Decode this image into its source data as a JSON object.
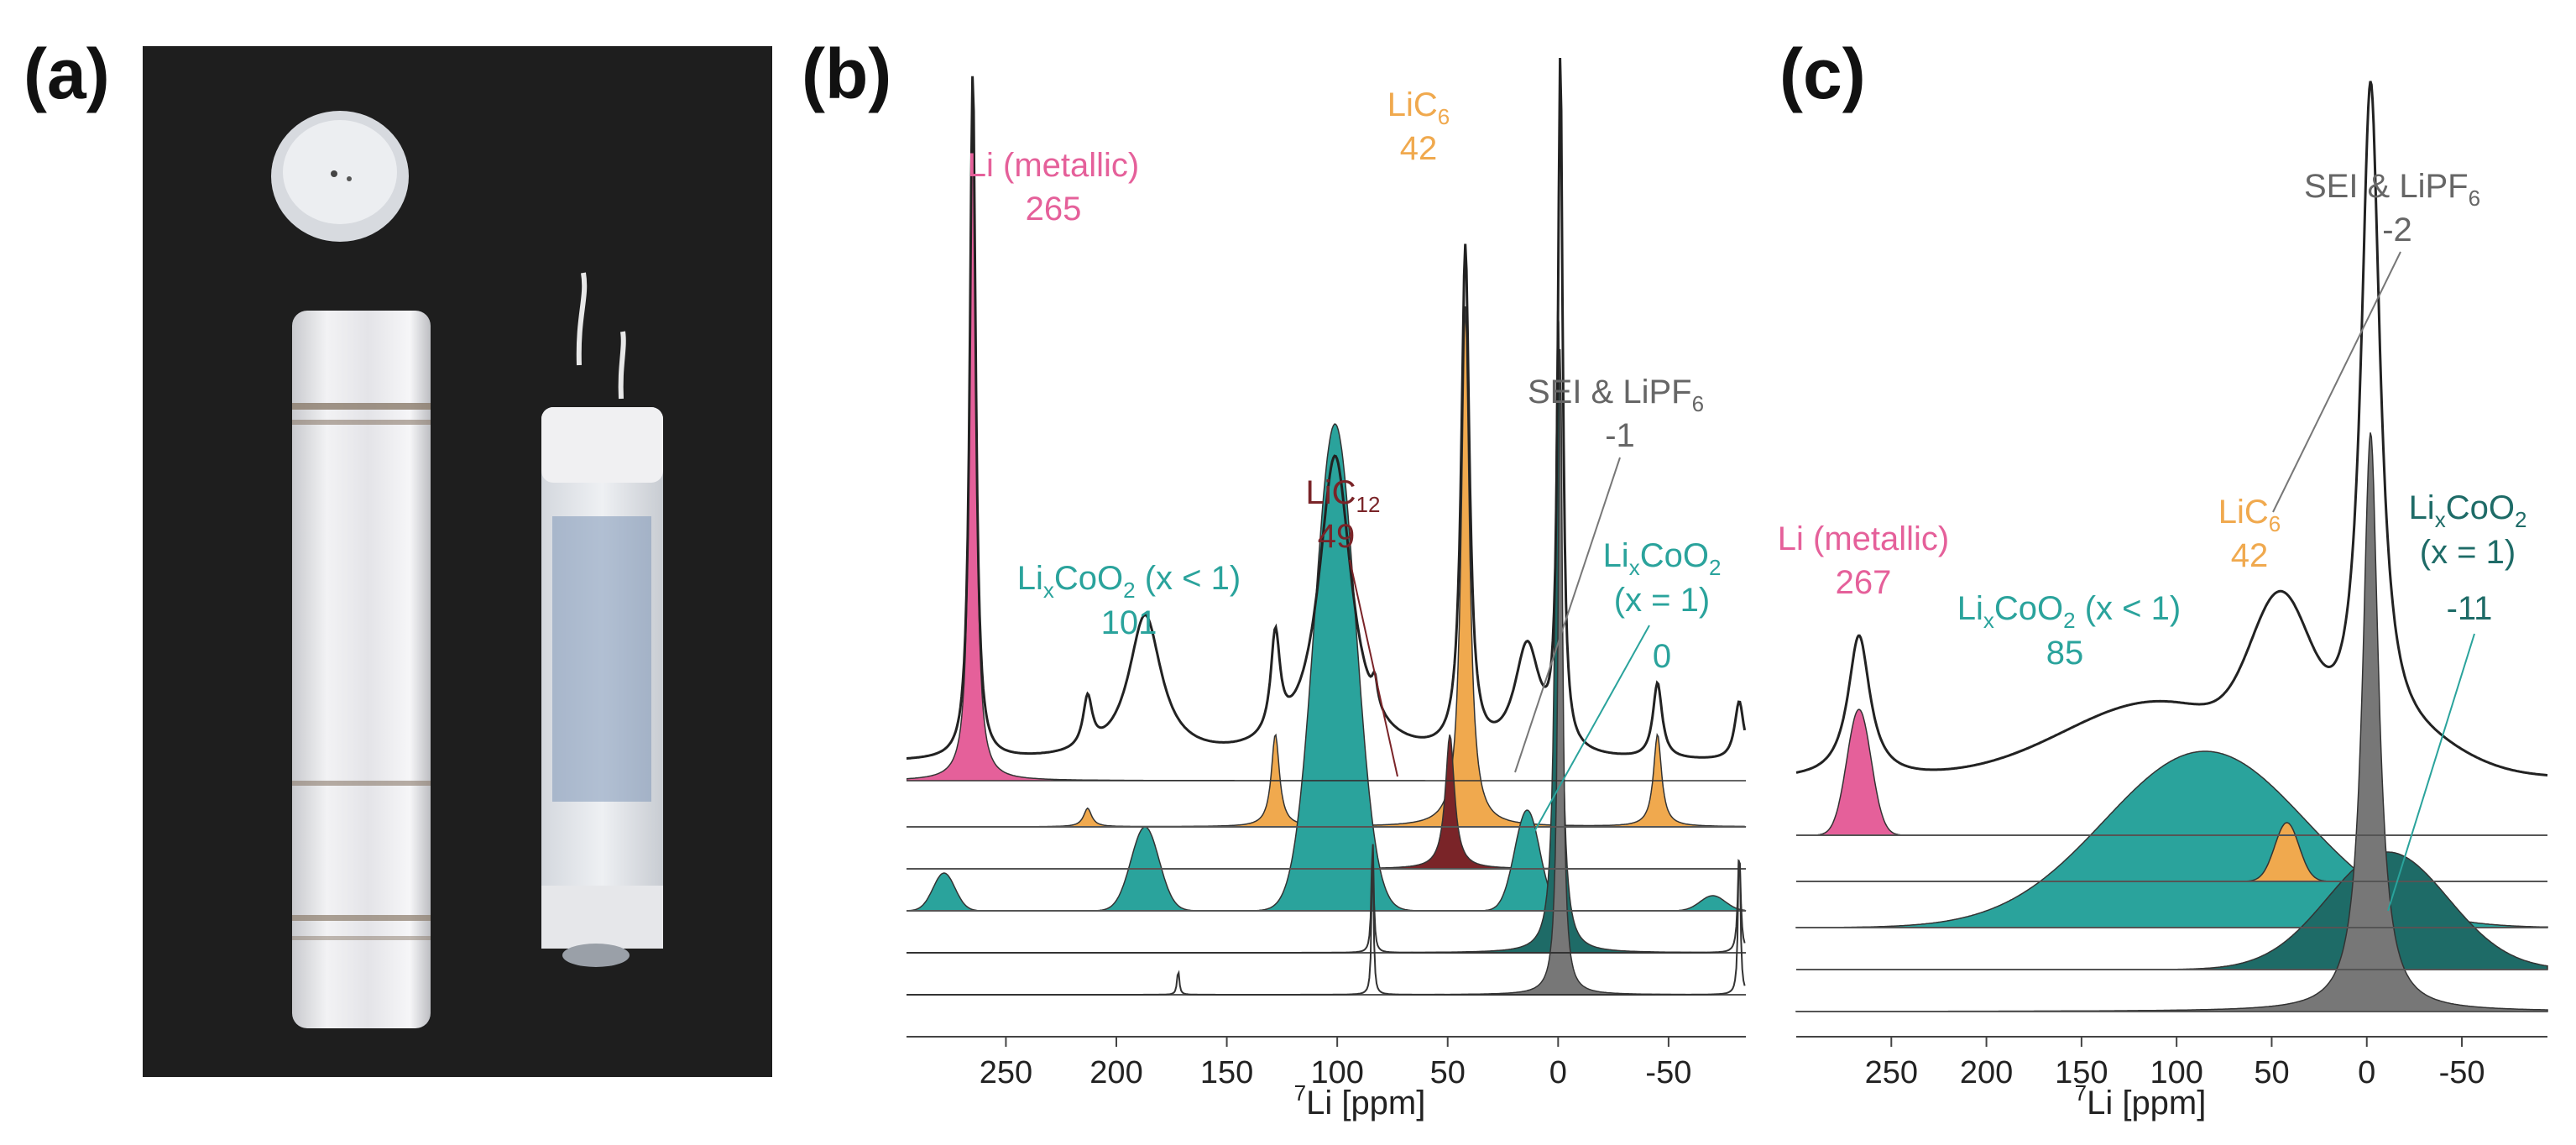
{
  "panels": {
    "a": {
      "letter": "(a)"
    },
    "b": {
      "letter": "(b)",
      "x_axis": {
        "label_sup": "7",
        "label_main": "Li [ppm]",
        "ticks": [
          "250",
          "200",
          "150",
          "100",
          "50",
          "0",
          "-50"
        ]
      },
      "annotations": {
        "li_metal": {
          "name": "Li (metallic)",
          "value": "265"
        },
        "lic6": {
          "name_main": "LiC",
          "name_sub": "6",
          "value": "42"
        },
        "lic12": {
          "name_main": "LiC",
          "name_sub": "12",
          "value": "49"
        },
        "sei": {
          "name_main": "SEI & LiPF",
          "name_sub": "6",
          "value": "-1"
        },
        "licoo2_lt1": {
          "p1": "Li",
          "p1_sub": "x",
          "p2": "CoO",
          "p2_sub": "2",
          "cond": " (x < 1)",
          "value": "101"
        },
        "licoo2_eq1": {
          "p1": "Li",
          "p1_sub": "x",
          "p2": "CoO",
          "p2_sub": "2",
          "cond": "(x = 1)",
          "value": "0"
        }
      }
    },
    "c": {
      "letter": "(c)",
      "x_axis": {
        "label_sup": "7",
        "label_main": "Li [ppm]",
        "ticks": [
          "250",
          "200",
          "150",
          "100",
          "50",
          "0",
          "-50"
        ]
      },
      "annotations": {
        "li_metal": {
          "name": "Li (metallic)",
          "value": "267"
        },
        "lic6": {
          "name_main": "LiC",
          "name_sub": "6",
          "value": "42"
        },
        "sei": {
          "name_main": "SEI & LiPF",
          "name_sub": "6",
          "value": "-2"
        },
        "licoo2_lt1": {
          "p1": "Li",
          "p1_sub": "x",
          "p2": "CoO",
          "p2_sub": "2",
          "cond": " (x < 1)",
          "value": "85"
        },
        "licoo2_eq1": {
          "p1": "Li",
          "p1_sub": "x",
          "p2": "CoO",
          "p2_sub": "2",
          "cond": "(x = 1)",
          "value": "-11"
        }
      }
    }
  },
  "colors": {
    "li_metal": "#e5609a",
    "lic6": "#f0a94e",
    "lic12": "#7a2428",
    "licoo2_lt1": "#2aa39c",
    "licoo2_eq1": "#1e6b67",
    "sei": "#777777",
    "spectrum": "#222222",
    "baseline": "#555555"
  },
  "chart_data": [
    {
      "panel": "b",
      "type": "line",
      "xlabel": "7Li [ppm]",
      "xlim": [
        295,
        -85
      ],
      "x_reversed": true,
      "components": [
        {
          "name": "Li (metallic)",
          "center": 265,
          "color": "li_metal"
        },
        {
          "name": "LiC6",
          "center": 42,
          "color": "lic6"
        },
        {
          "name": "LiC12",
          "center": 49,
          "color": "lic12"
        },
        {
          "name": "LixCoO2 (x < 1)",
          "center": 101,
          "color": "licoo2_lt1"
        },
        {
          "name": "LixCoO2 (x = 1)",
          "center": 0,
          "color": "licoo2_eq1"
        },
        {
          "name": "SEI & LiPF6",
          "center": -1,
          "color": "sei"
        }
      ]
    },
    {
      "panel": "c",
      "type": "line",
      "xlabel": "7Li [ppm]",
      "xlim": [
        300,
        -95
      ],
      "x_reversed": true,
      "components": [
        {
          "name": "Li (metallic)",
          "center": 267,
          "color": "li_metal"
        },
        {
          "name": "LiC6",
          "center": 42,
          "color": "lic6"
        },
        {
          "name": "LixCoO2 (x < 1)",
          "center": 85,
          "color": "licoo2_lt1"
        },
        {
          "name": "LixCoO2 (x = 1)",
          "center": -11,
          "color": "licoo2_eq1"
        },
        {
          "name": "SEI & LiPF6",
          "center": -2,
          "color": "sei"
        }
      ]
    }
  ]
}
